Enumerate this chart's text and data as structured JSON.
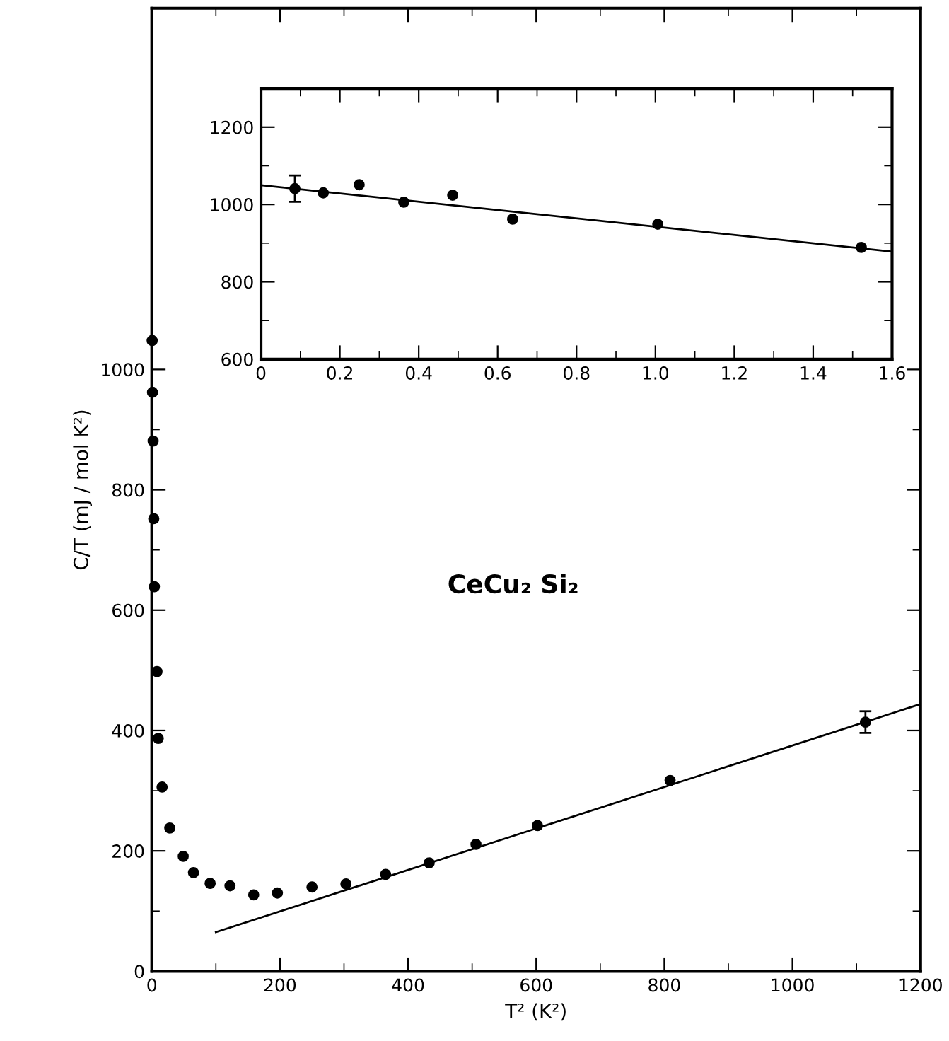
{
  "chart_data": [
    {
      "type": "scatter",
      "xlabel": "T² (K²)",
      "ylabel": "C/T (mJ / mol K²)",
      "annotations": [
        "CeCu₂ Si₂"
      ],
      "xlim": [
        0,
        1200
      ],
      "ylim": [
        0,
        1600
      ],
      "xticks": [
        0,
        200,
        400,
        600,
        800,
        1000,
        1200
      ],
      "yticks": [
        0,
        200,
        400,
        600,
        800,
        1000
      ],
      "grid": false,
      "legend": false,
      "series": [
        {
          "marker": "circle",
          "color": "#000000",
          "x": [
            0.5,
            1,
            2,
            3,
            4,
            8,
            10,
            16,
            28,
            49,
            65,
            91,
            122,
            159,
            196,
            250,
            303,
            365,
            433,
            506,
            602,
            809,
            1114
          ],
          "values": [
            1048,
            962,
            881,
            752,
            639,
            498,
            387,
            306,
            238,
            191,
            164,
            146,
            142,
            127,
            130,
            140,
            145,
            161,
            180,
            211,
            242,
            317,
            414
          ],
          "errors": [
            null,
            null,
            null,
            null,
            null,
            null,
            null,
            null,
            null,
            null,
            null,
            null,
            null,
            null,
            null,
            null,
            null,
            null,
            null,
            null,
            null,
            null,
            18
          ]
        },
        {
          "type": "line",
          "marker": "none",
          "color": "#000000",
          "x": [
            100,
            1200
          ],
          "values": [
            65,
            444
          ]
        }
      ]
    },
    {
      "type": "scatter",
      "xlim": [
        0,
        1.6
      ],
      "ylim": [
        600,
        1300
      ],
      "xticks": [
        0,
        0.2,
        0.4,
        0.6,
        0.8,
        {
          "value": 1,
          "label": "1.0"
        },
        1.2,
        1.4,
        1.6
      ],
      "yticks": [
        600,
        800,
        1000,
        1200
      ],
      "grid": false,
      "legend": false,
      "series": [
        {
          "marker": "circle",
          "color": "#000000",
          "x": [
            0.086,
            0.158,
            0.249,
            0.362,
            0.486,
            0.638,
            1.006,
            1.522
          ],
          "values": [
            1041,
            1030,
            1051,
            1006,
            1024,
            962,
            949,
            889
          ],
          "errors": [
            34,
            null,
            null,
            null,
            null,
            null,
            null,
            null
          ]
        },
        {
          "type": "line",
          "marker": "none",
          "color": "#000000",
          "x": [
            0,
            1.6
          ],
          "values": [
            1050,
            878
          ]
        }
      ]
    }
  ]
}
